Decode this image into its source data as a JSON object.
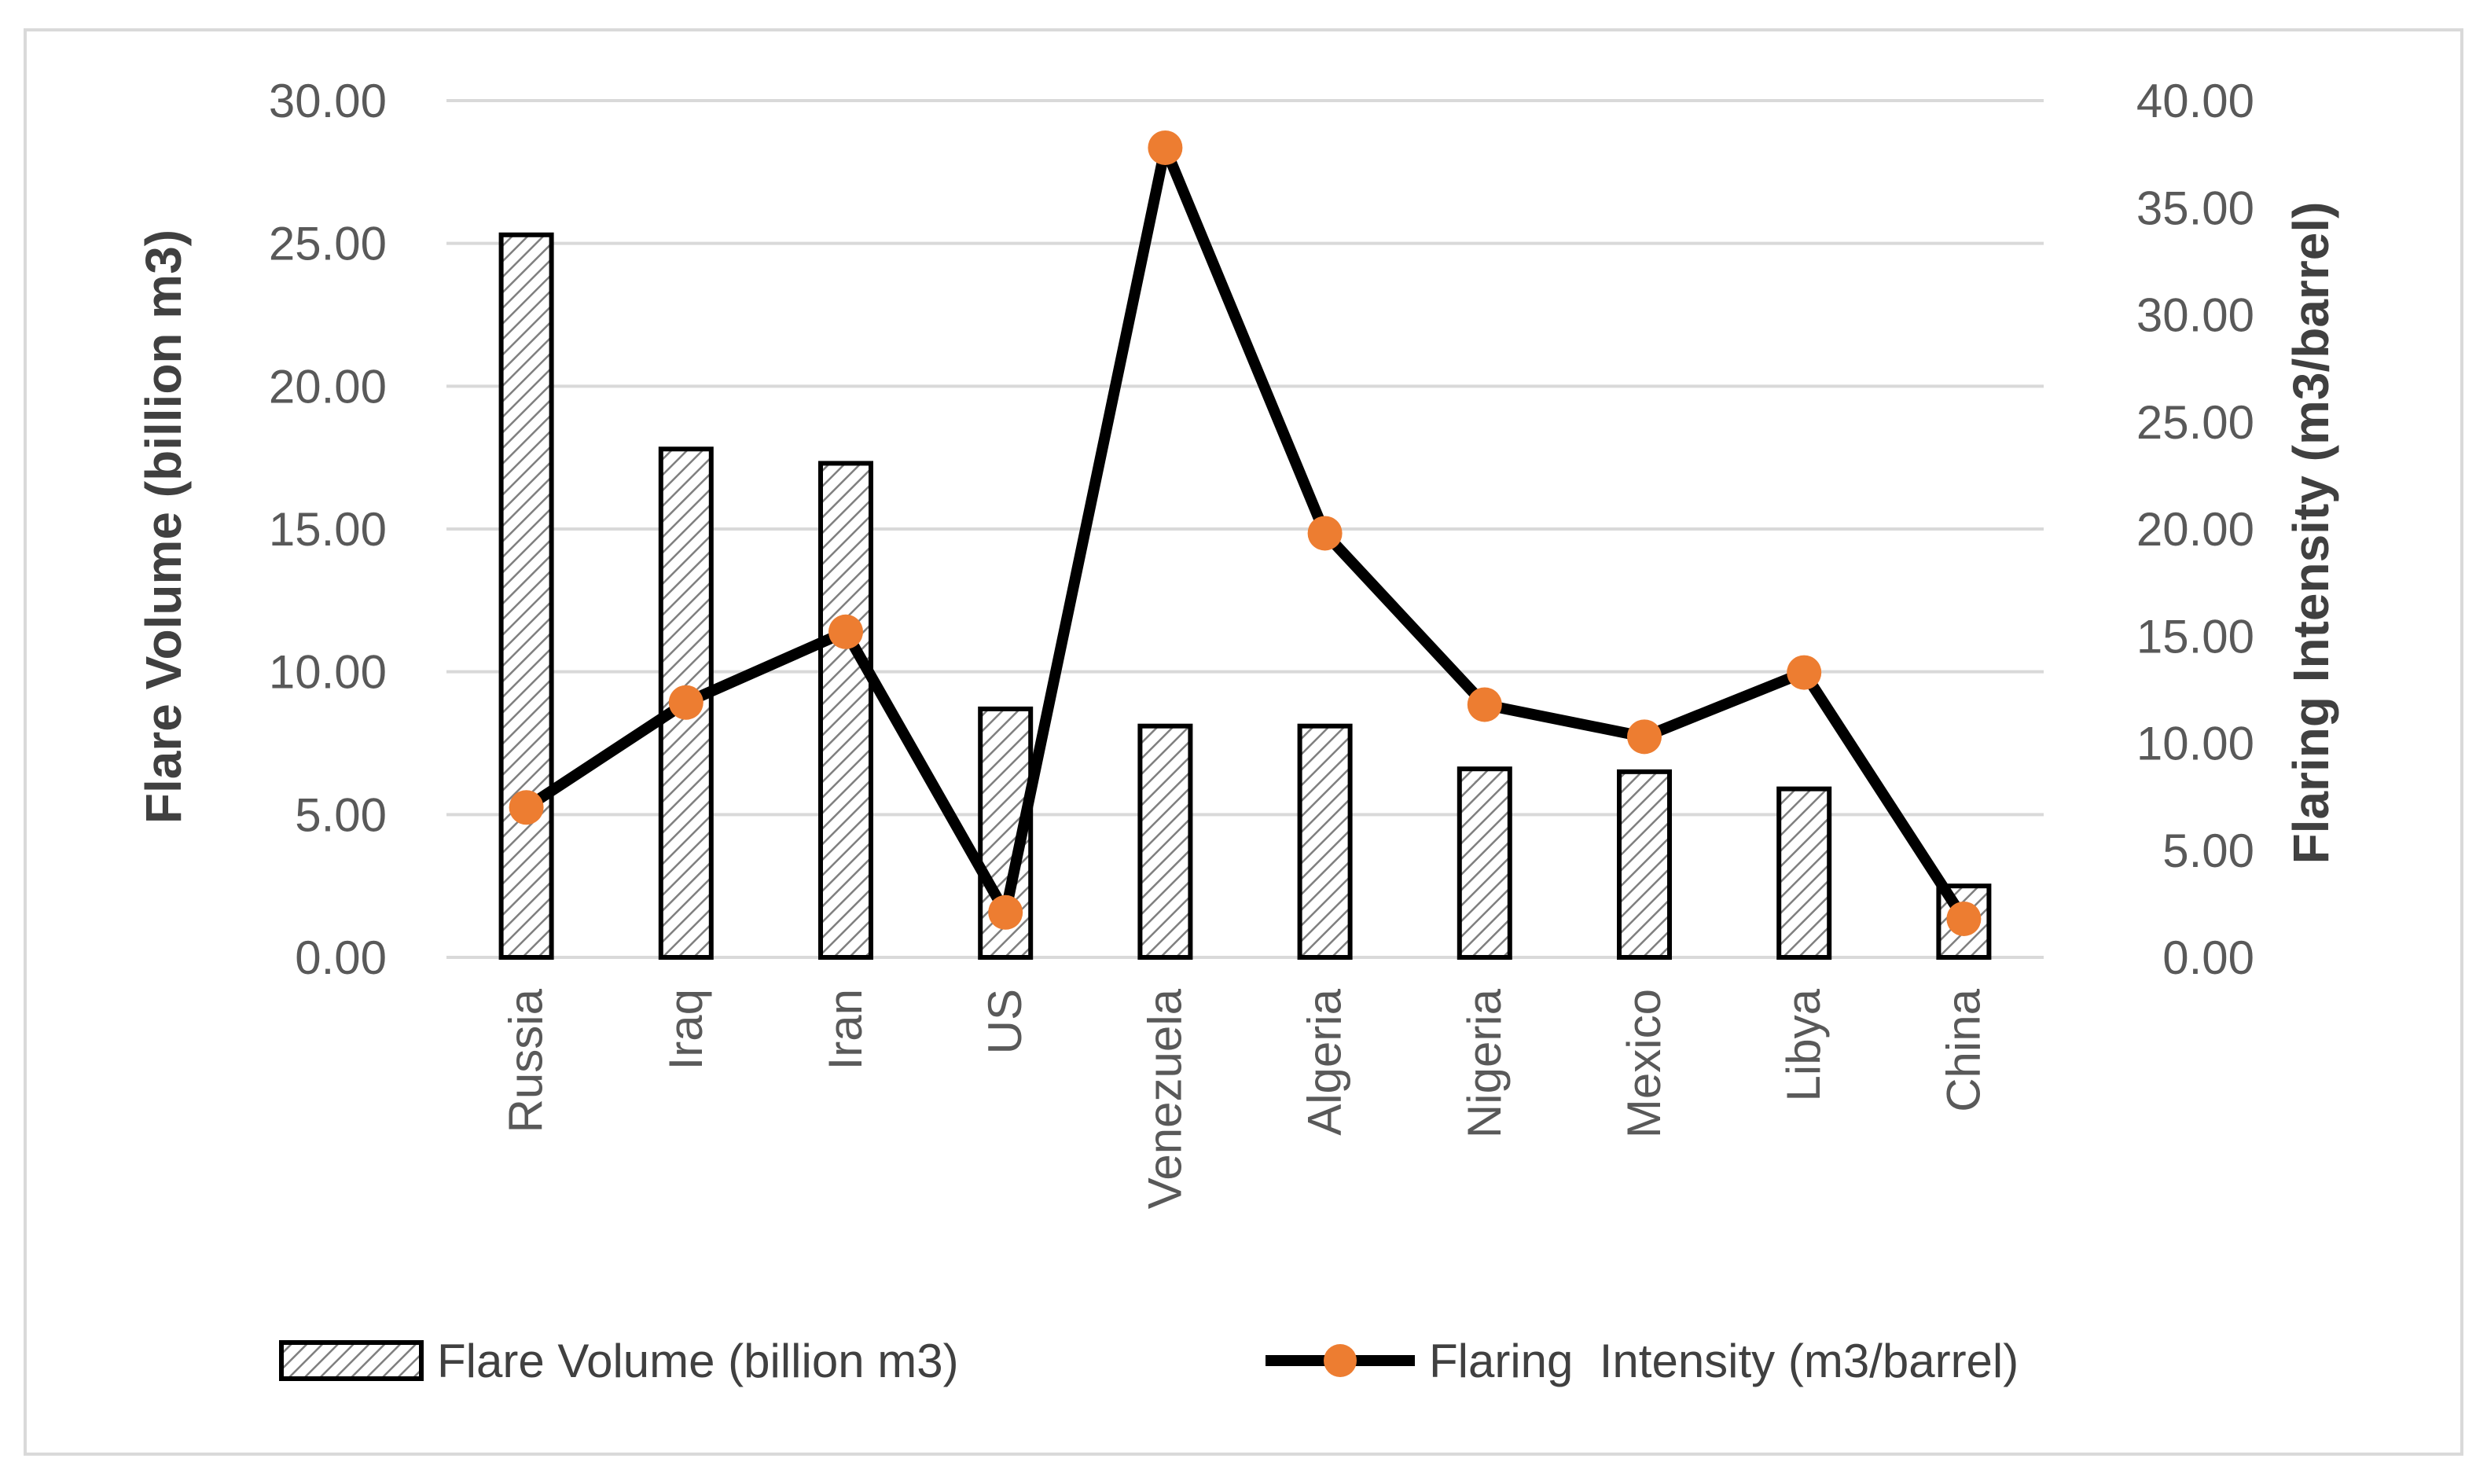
{
  "chart_data": {
    "type": "bar+line",
    "title": "",
    "categories": [
      "Russia",
      "Iraq",
      "Iran",
      "US",
      "Venezuela",
      "Algeria",
      "Nigeria",
      "Mexico",
      "Libya",
      "China"
    ],
    "series": [
      {
        "name": "Flare Volume (billion m3)",
        "type": "bar",
        "axis": "left",
        "values": [
          25.3,
          17.8,
          17.3,
          8.7,
          8.1,
          8.1,
          6.6,
          6.5,
          5.9,
          2.5
        ]
      },
      {
        "name": "Flaring  Intensity (m3/barrel)",
        "type": "line",
        "axis": "right",
        "values": [
          7.0,
          11.9,
          15.2,
          2.1,
          37.8,
          19.8,
          11.8,
          10.3,
          13.3,
          1.8
        ]
      }
    ],
    "y_left": {
      "label": "Flare Volume (billion m3)",
      "ylim": [
        0,
        30
      ],
      "ticks": [
        "0.00",
        "5.00",
        "10.00",
        "15.00",
        "20.00",
        "25.00",
        "30.00"
      ]
    },
    "y_right": {
      "label": "Flaring Intensity (m3/barrel)",
      "ylim": [
        0,
        40
      ],
      "ticks": [
        "0.00",
        "5.00",
        "10.00",
        "15.00",
        "20.00",
        "25.00",
        "30.00",
        "35.00",
        "40.00"
      ]
    },
    "grid": true,
    "legend_position": "bottom",
    "colors": {
      "bar_stroke": "#000000",
      "bar_hatch": "#7f7f7f",
      "line": "#000000",
      "marker": "#ed7d31",
      "grid": "#d9d9d9",
      "frame": "#d9d9d9"
    }
  }
}
